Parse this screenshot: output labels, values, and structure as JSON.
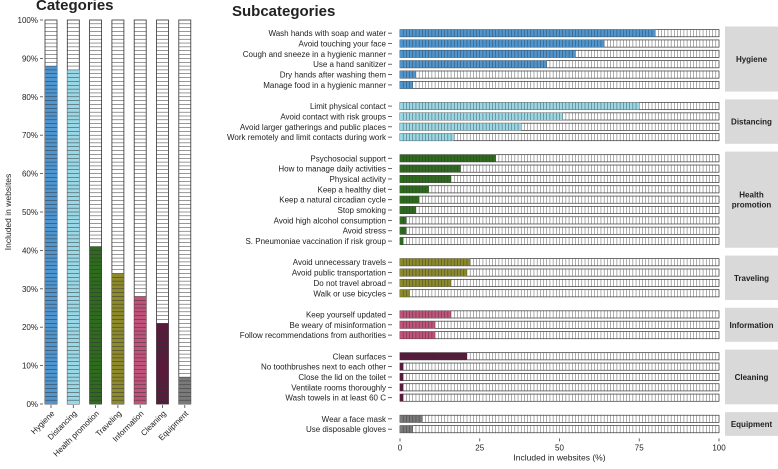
{
  "chart_data": [
    {
      "type": "bar",
      "title": "Categories",
      "ylabel": "Included in websites",
      "ylim": [
        0,
        100
      ],
      "yticks": [
        "0%",
        "10%",
        "20%",
        "30%",
        "40%",
        "50%",
        "60%",
        "70%",
        "80%",
        "90%",
        "100%"
      ],
      "categories": [
        "Hygiene",
        "Distancing",
        "Health promotion",
        "Traveling",
        "Information",
        "Cleaning",
        "Equipment"
      ],
      "values": [
        88,
        87,
        41,
        34,
        28,
        21,
        7
      ],
      "colors": [
        "#4f95cf",
        "#99d8e6",
        "#2e6b1e",
        "#8c8a2a",
        "#c2527a",
        "#5a1a3c",
        "#7a7a7a"
      ],
      "style": "stacked-unit-boxes"
    },
    {
      "type": "bar",
      "orientation": "horizontal",
      "title": "Subcategories",
      "xlabel": "Included in websites (%)",
      "xlim": [
        0,
        100
      ],
      "xticks": [
        "0",
        "25",
        "50",
        "75",
        "100"
      ],
      "groups": [
        {
          "name": "Hygiene",
          "color": "#4f95cf",
          "items": [
            {
              "label": "Wash hands with soap and water",
              "value": 80
            },
            {
              "label": "Avoid touching your face",
              "value": 64
            },
            {
              "label": "Cough and sneeze in a hygienic manner",
              "value": 55
            },
            {
              "label": "Use a hand sanitizer",
              "value": 46
            },
            {
              "label": "Dry hands after washing them",
              "value": 5
            },
            {
              "label": "Manage food in a hygienic manner",
              "value": 4
            }
          ]
        },
        {
          "name": "Distancing",
          "color": "#99d8e6",
          "items": [
            {
              "label": "Limit physical contact",
              "value": 75
            },
            {
              "label": "Avoid contact with risk groups",
              "value": 51
            },
            {
              "label": "Avoid larger gatherings and public places",
              "value": 38
            },
            {
              "label": "Work remotely and limit contacts during work",
              "value": 17
            }
          ]
        },
        {
          "name": "Health promotion",
          "color": "#2e6b1e",
          "items": [
            {
              "label": "Psychosocial support",
              "value": 30
            },
            {
              "label": "How to manage daily activities",
              "value": 19
            },
            {
              "label": "Physical activity",
              "value": 16
            },
            {
              "label": "Keep a healthy diet",
              "value": 9
            },
            {
              "label": "Keep a natural circadian cycle",
              "value": 6
            },
            {
              "label": "Stop smoking",
              "value": 5
            },
            {
              "label": "Avoid high alcohol consumption",
              "value": 2
            },
            {
              "label": "Avoid stress",
              "value": 2
            },
            {
              "label": "S. Pneumoniae vaccination if risk group",
              "value": 1
            }
          ]
        },
        {
          "name": "Traveling",
          "color": "#8c8a2a",
          "items": [
            {
              "label": "Avoid unnecessary travels",
              "value": 22
            },
            {
              "label": "Avoid public transportation",
              "value": 21
            },
            {
              "label": "Do not travel abroad",
              "value": 16
            },
            {
              "label": "Walk or use bicycles",
              "value": 3
            }
          ]
        },
        {
          "name": "Information",
          "color": "#c2527a",
          "items": [
            {
              "label": "Keep yourself updated",
              "value": 16
            },
            {
              "label": "Be weary of misinformation",
              "value": 11
            },
            {
              "label": "Follow recommendations from authorities",
              "value": 11
            }
          ]
        },
        {
          "name": "Cleaning",
          "color": "#5a1a3c",
          "items": [
            {
              "label": "Clean surfaces",
              "value": 21
            },
            {
              "label": "No toothbrushes next to each other",
              "value": 1
            },
            {
              "label": "Close the lid on the toilet",
              "value": 1
            },
            {
              "label": "Ventilate rooms thoroughly",
              "value": 1
            },
            {
              "label": "Wash towels in at least 60 C",
              "value": 1
            }
          ]
        },
        {
          "name": "Equipment",
          "color": "#7a7a7a",
          "items": [
            {
              "label": "Wear a face mask",
              "value": 7
            },
            {
              "label": "Use disposable gloves",
              "value": 4
            }
          ]
        }
      ]
    }
  ]
}
